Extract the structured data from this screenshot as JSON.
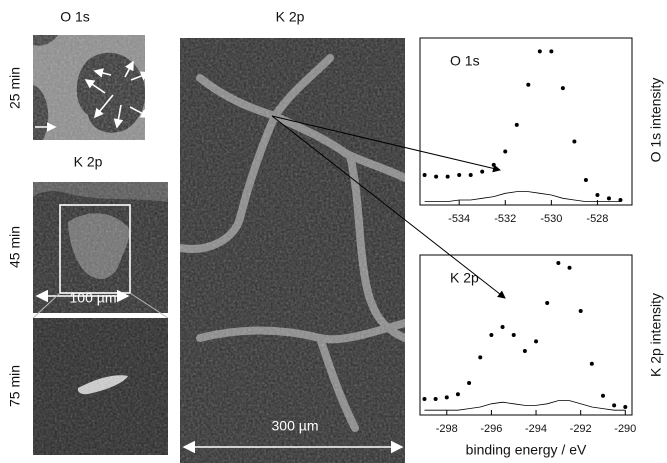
{
  "panels": {
    "left_top_title": "O 1s",
    "left_mid_title": "K 2p",
    "time_25": "25 min",
    "time_45": "45 min",
    "time_75": "75 min",
    "scale_small": "100 µm",
    "main_title": "K 2p",
    "scale_large": "300 µm"
  },
  "chart_data": [
    {
      "type": "line",
      "title": "O 1s",
      "ylabel": "O 1s intensity",
      "x": [
        -535.5,
        -535,
        -534.5,
        -534,
        -533.5,
        -533,
        -532.5,
        -532,
        -531.5,
        -531,
        -530.5,
        -530,
        -529.5,
        -529,
        -528.5,
        -528,
        -527.5,
        -527
      ],
      "series": [
        {
          "color": "#000000",
          "marker": "dot",
          "values": [
            18,
            17,
            17,
            18,
            18,
            20,
            24,
            32,
            48,
            72,
            92,
            92,
            70,
            38,
            15,
            6,
            4,
            3
          ]
        },
        {
          "color": "#000000",
          "marker": "none",
          "values": [
            2,
            2,
            2,
            3,
            3,
            4,
            5,
            7,
            8,
            8,
            7,
            6,
            4,
            3,
            2,
            2,
            2,
            2
          ]
        }
      ],
      "xlim": [
        -535.7,
        -526.5
      ],
      "xticks": [
        -534,
        -532,
        -530,
        -528
      ],
      "ylim": [
        0,
        100
      ]
    },
    {
      "type": "line",
      "title": "K 2p",
      "ylabel": "K 2p intensity",
      "xlabel": "binding energy / eV",
      "x": [
        -299,
        -298.5,
        -298,
        -297.5,
        -297,
        -296.5,
        -296,
        -295.5,
        -295,
        -294.5,
        -294,
        -293.5,
        -293,
        -292.5,
        -292,
        -291.5,
        -291,
        -290.5,
        -290
      ],
      "series": [
        {
          "color": "#000000",
          "marker": "dot",
          "values": [
            10,
            10,
            11,
            13,
            20,
            36,
            50,
            55,
            50,
            40,
            46,
            70,
            95,
            92,
            65,
            32,
            12,
            6,
            5
          ]
        },
        {
          "color": "#000000",
          "marker": "none",
          "values": [
            3,
            3,
            3,
            3,
            4,
            5,
            7,
            8,
            7,
            6,
            6,
            7,
            9,
            9,
            7,
            5,
            4,
            3,
            3
          ]
        }
      ],
      "xlim": [
        -299.2,
        -289.7
      ],
      "xticks": [
        -298,
        -296,
        -294,
        -292,
        -290
      ],
      "ylim": [
        0,
        100
      ]
    }
  ]
}
